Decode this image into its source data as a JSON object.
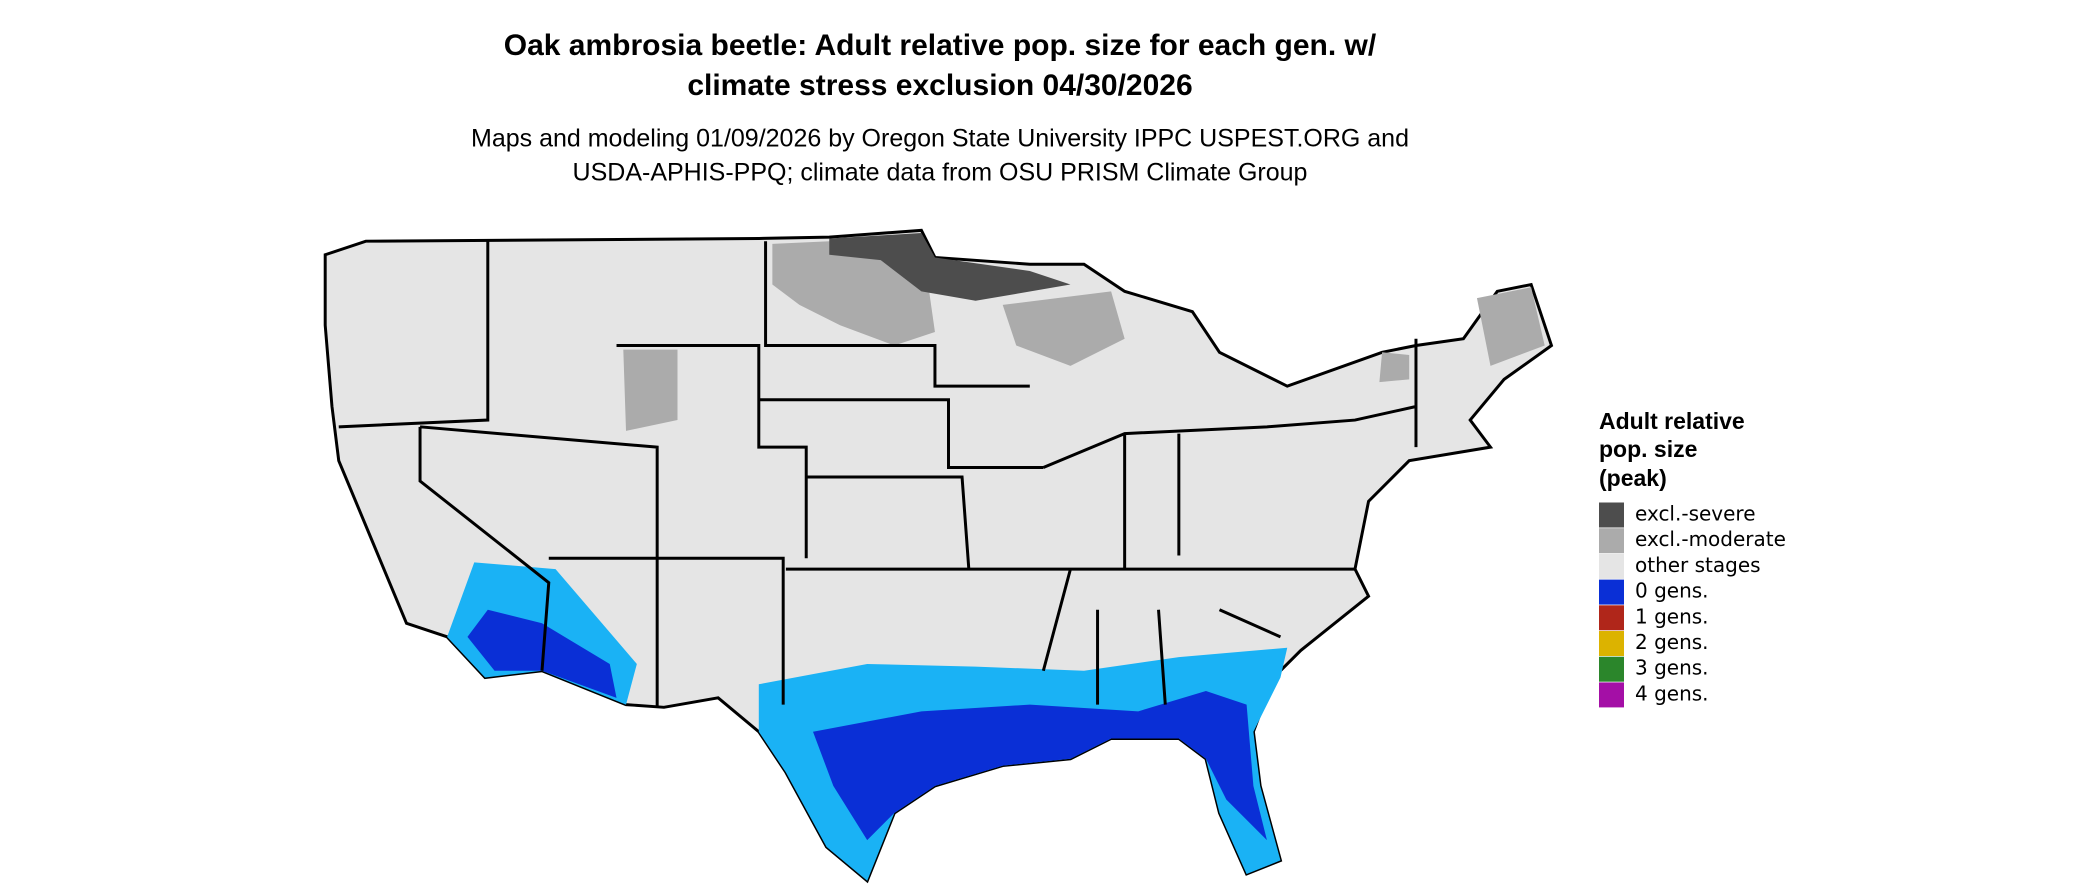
{
  "title": [
    "Oak ambrosia beetle: Adult relative pop. size for each gen. w/",
    "climate stress exclusion 04/30/2026"
  ],
  "subtitle": [
    "Maps and modeling 01/09/2026 by Oregon State University IPPC USPEST.ORG and",
    "USDA-APHIS-PPQ; climate data from OSU PRISM Climate Group"
  ],
  "legend": {
    "title": [
      "Adult relative",
      "pop. size",
      "(peak)"
    ],
    "items": [
      {
        "label": "excl.-severe",
        "color": "#4d4d4d"
      },
      {
        "label": "excl.-moderate",
        "color": "#ababab"
      },
      {
        "label": "other stages",
        "color": "#e5e5e5"
      },
      {
        "label": "0 gens.",
        "color": "#0a2fd6"
      },
      {
        "label": "1 gens.",
        "color": "#b0261a"
      },
      {
        "label": "2 gens.",
        "color": "#dcb300"
      },
      {
        "label": "3 gens.",
        "color": "#2b862b"
      },
      {
        "label": "4 gens.",
        "color": "#a40fa6"
      }
    ]
  }
}
